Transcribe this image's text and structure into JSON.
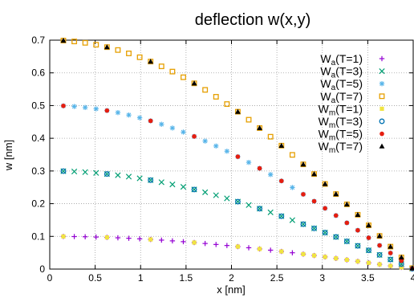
{
  "chart_data": {
    "type": "scatter",
    "title": "deflection w(x,y)",
    "xlabel": "x [nm]",
    "ylabel": "w [nm]",
    "xlim": [
      0,
      4
    ],
    "ylim": [
      0,
      0.7
    ],
    "xticks": [
      "0",
      "0.5",
      "1",
      "1.5",
      "2",
      "2.5",
      "3",
      "3.5",
      "4"
    ],
    "yticks": [
      "0",
      "0.1",
      "0.2",
      "0.3",
      "0.4",
      "0.5",
      "0.6",
      "0.7"
    ],
    "grid": true,
    "legend_position": "top-right",
    "series": [
      {
        "name": "W_a(T=1)",
        "base": "W",
        "sub": "a",
        "tail": "(T=1)",
        "marker": "plus",
        "color": "#9400d3",
        "amplitude": 0.1,
        "x": "analytic-dense"
      },
      {
        "name": "W_a(T=3)",
        "base": "W",
        "sub": "a",
        "tail": "(T=3)",
        "marker": "cross",
        "color": "#009e73",
        "amplitude": 0.3,
        "x": "analytic-dense"
      },
      {
        "name": "W_a(T=5)",
        "base": "W",
        "sub": "a",
        "tail": "(T=5)",
        "marker": "star",
        "color": "#56b4e9",
        "amplitude": 0.5,
        "x": "analytic-dense"
      },
      {
        "name": "W_a(T=7)",
        "base": "W",
        "sub": "a",
        "tail": "(T=7)",
        "marker": "square-open",
        "color": "#e69f00",
        "amplitude": 0.7,
        "x": "analytic-dense"
      },
      {
        "name": "W_m(T=1)",
        "base": "W",
        "sub": "m",
        "tail": "(T=1)",
        "marker": "square-filled",
        "color": "#f0e442",
        "amplitude": 0.1,
        "x": "model-sparse"
      },
      {
        "name": "W_m(T=3)",
        "base": "W",
        "sub": "m",
        "tail": "(T=3)",
        "marker": "circle-open",
        "color": "#0072b2",
        "amplitude": 0.3,
        "x": "model-sparse"
      },
      {
        "name": "W_m(T=5)",
        "base": "W",
        "sub": "m",
        "tail": "(T=5)",
        "marker": "circle-filled",
        "color": "#e51e10",
        "amplitude": 0.5,
        "x": "model-sparse"
      },
      {
        "name": "W_m(T=7)",
        "base": "W",
        "sub": "m",
        "tail": "(T=7)",
        "marker": "triangle-filled",
        "color": "#000000",
        "amplitude": 0.7,
        "x": "model-sparse"
      }
    ],
    "x_dense": [
      0.15,
      0.27,
      0.39,
      0.51,
      0.63,
      0.75,
      0.87,
      0.99,
      1.11,
      1.23,
      1.35,
      1.47,
      1.59,
      1.71,
      1.83,
      1.95,
      2.07,
      2.19,
      2.31,
      2.43,
      2.55,
      2.67,
      2.79,
      2.91,
      3.03,
      3.15,
      3.27,
      3.39,
      3.51,
      3.63,
      3.75,
      3.87,
      3.99
    ],
    "x_sparse": [
      0.15,
      0.63,
      1.11,
      1.59,
      2.07,
      2.31,
      2.55,
      2.79,
      2.91,
      3.03,
      3.15,
      3.27,
      3.39,
      3.51,
      3.63,
      3.75,
      3.87,
      3.99
    ]
  }
}
